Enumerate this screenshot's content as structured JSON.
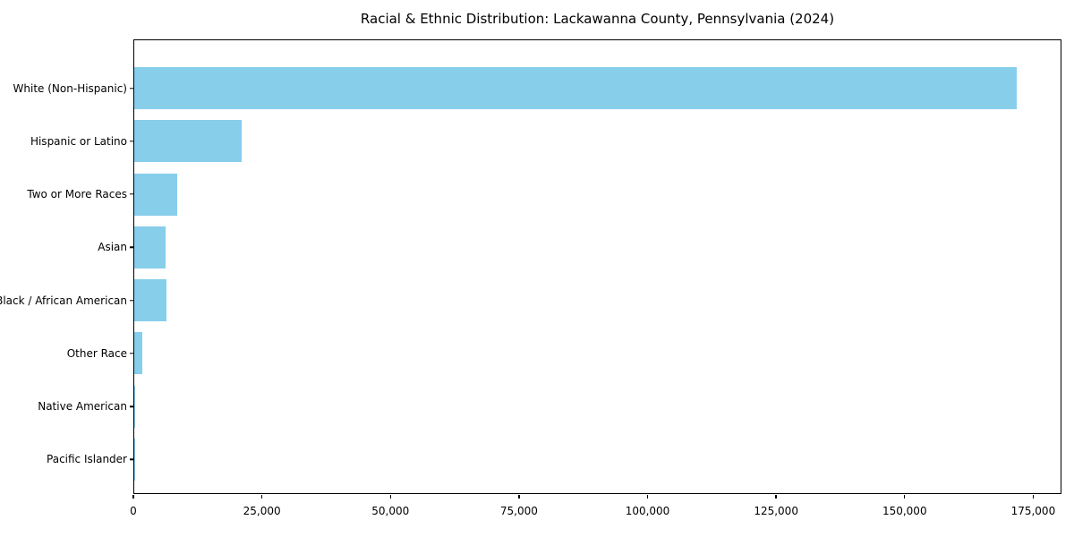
{
  "figure": {
    "background_color": "#ffffff",
    "text_color": "#000000",
    "axis_color": "#000000"
  },
  "chart_data": {
    "type": "bar",
    "orientation": "horizontal",
    "title": "Racial & Ethnic Distribution: Lackawanna County, Pennsylvania (2024)",
    "xlabel": "",
    "ylabel": "",
    "categories": [
      "White (Non-Hispanic)",
      "Hispanic or Latino",
      "Two or More Races",
      "Asian",
      "Black / African American",
      "Other Race",
      "Native American",
      "Pacific Islander"
    ],
    "values": [
      172000,
      21000,
      8400,
      6100,
      6300,
      1600,
      100,
      25
    ],
    "bar_color": "#87CEEB",
    "xlim": [
      0,
      180500
    ],
    "xticks": [
      {
        "value": 0,
        "label": "0"
      },
      {
        "value": 25000,
        "label": "25,000"
      },
      {
        "value": 50000,
        "label": "50,000"
      },
      {
        "value": 75000,
        "label": "75,000"
      },
      {
        "value": 100000,
        "label": "100,000"
      },
      {
        "value": 125000,
        "label": "125,000"
      },
      {
        "value": 150000,
        "label": "150,000"
      },
      {
        "value": 175000,
        "label": "175,000"
      }
    ],
    "grid": false,
    "legend": "none"
  }
}
